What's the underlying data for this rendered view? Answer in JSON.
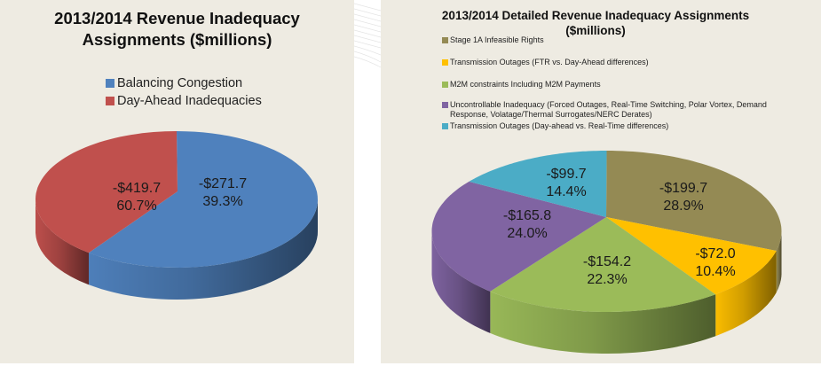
{
  "chart_data": [
    {
      "type": "pie",
      "title": "2013/2014 Revenue Inadequacy Assignments ($millions)",
      "title_lines": [
        "2013/2014 Revenue Inadequacy",
        "Assignments ($millions)"
      ],
      "legend_position": "top",
      "style": "3d",
      "slices": [
        {
          "name": "Balancing Congestion",
          "value": -419.7,
          "percent": 60.7,
          "label_value": "-$419.7",
          "label_percent": "60.7%",
          "color": "#4f81bd",
          "side_color": "#2f4d72"
        },
        {
          "name": "Day-Ahead Inadequacies",
          "value": -271.7,
          "percent": 39.3,
          "label_value": "-$271.7",
          "label_percent": "39.3%",
          "color": "#c0504d",
          "side_color": "#5e2220"
        }
      ]
    },
    {
      "type": "pie",
      "title": "2013/2014 Detailed Revenue Inadequacy Assignments ($millions)",
      "title_lines": [
        "2013/2014 Detailed Revenue Inadequacy Assignments",
        "($millions)"
      ],
      "legend_position": "top-left",
      "style": "3d",
      "slices": [
        {
          "name": "Stage 1A Infeasible Rights",
          "value": -199.7,
          "percent": 28.9,
          "label_value": "-$199.7",
          "label_percent": "28.9%",
          "color": "#948a54",
          "side_color": "#5f5733"
        },
        {
          "name": "Transmission Outages (FTR vs. Day-Ahead differences)",
          "value": -72.0,
          "percent": 10.4,
          "label_value": "-$72.0",
          "label_percent": "10.4%",
          "color": "#ffc000",
          "side_color": "#6b4e00"
        },
        {
          "name": "M2M constraints Including M2M Payments",
          "value": -154.2,
          "percent": 22.3,
          "label_value": "-$154.2",
          "label_percent": "22.3%",
          "color": "#9bbb59",
          "side_color": "#56702c"
        },
        {
          "name": "Uncontrollable Inadequacy (Forced Outages, Real-Time Switching, Polar Vortex, Demand Response, Volatage/Thermal Surrogates/NERC Derates)",
          "value": -165.8,
          "percent": 24.0,
          "label_value": "-$165.8",
          "label_percent": "24.0%",
          "color": "#8064a2",
          "side_color": "#5e4a7a"
        },
        {
          "name": "Transmission Outages (Day-ahead vs. Real-Time differences)",
          "value": -99.7,
          "percent": 14.4,
          "label_value": "-$99.7",
          "label_percent": "14.4%",
          "color": "#4bacc6",
          "side_color": "#2f7284"
        }
      ]
    }
  ]
}
